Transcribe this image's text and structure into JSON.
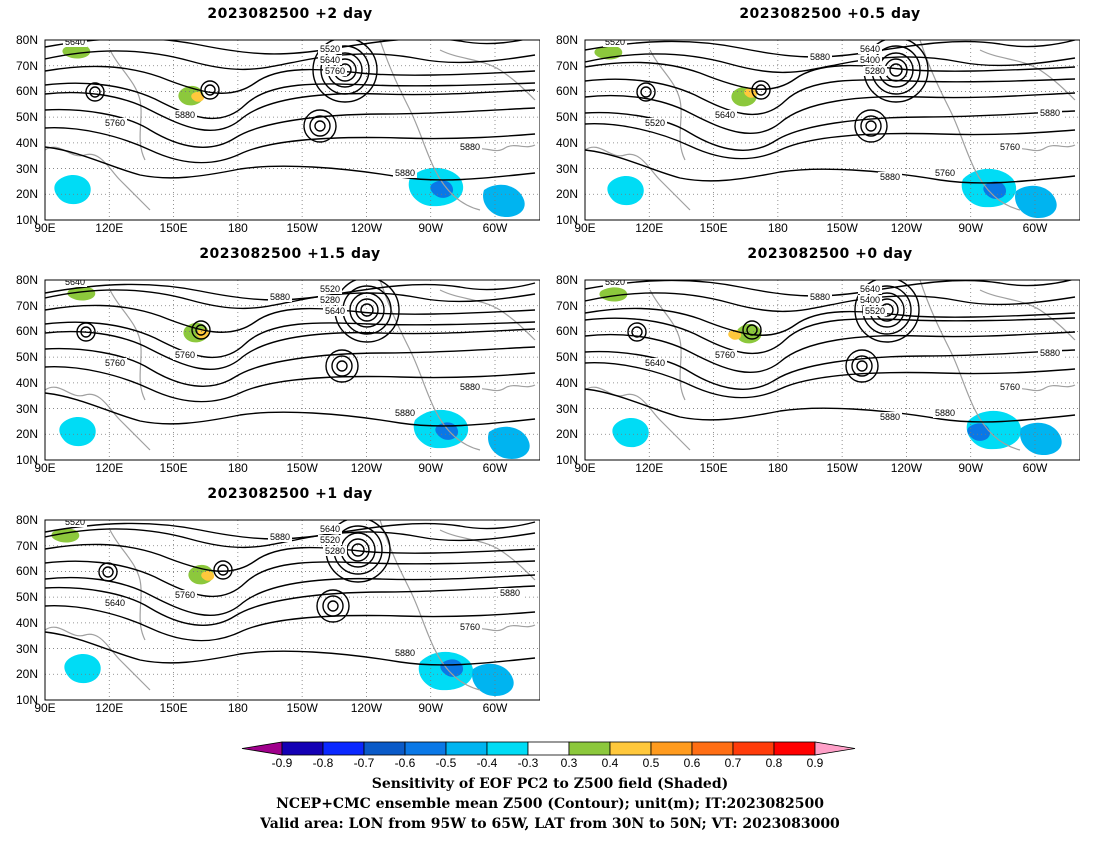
{
  "panels": [
    {
      "title": "2023082500  +2 day",
      "contour_labels": [
        "5640",
        "5520",
        "5640",
        "5760",
        "5760",
        "5880",
        "5880",
        "5880"
      ]
    },
    {
      "title": "2023082500  +0.5 day",
      "contour_labels": [
        "5520",
        "5640",
        "5400",
        "5280",
        "5520",
        "5640",
        "5760",
        "5760",
        "5880",
        "5880",
        "5880"
      ]
    },
    {
      "title": "2023082500  +1.5 day",
      "contour_labels": [
        "5640",
        "5520",
        "5280",
        "5640",
        "5760",
        "5760",
        "5880",
        "5880",
        "5880"
      ]
    },
    {
      "title": "2023082500  +0 day",
      "contour_labels": [
        "5520",
        "5640",
        "5400",
        "5520",
        "5640",
        "5760",
        "5760",
        "5880",
        "5880",
        "5880",
        "5880"
      ]
    },
    {
      "title": "2023082500  +1 day",
      "contour_labels": [
        "5520",
        "5640",
        "5520",
        "5280",
        "5640",
        "5760",
        "5760",
        "5880",
        "5880",
        "5880"
      ]
    }
  ],
  "axes": {
    "lat_labels": [
      "80N",
      "70N",
      "60N",
      "50N",
      "40N",
      "30N",
      "20N",
      "10N"
    ],
    "lon_labels": [
      "90E",
      "120E",
      "150E",
      "180",
      "150W",
      "120W",
      "90W",
      "60W"
    ]
  },
  "colorbar": {
    "ticks": [
      "-0.9",
      "-0.8",
      "-0.7",
      "-0.6",
      "-0.5",
      "-0.4",
      "-0.3",
      "0.3",
      "0.4",
      "0.5",
      "0.6",
      "0.7",
      "0.8",
      "0.9"
    ],
    "colors": [
      "#a0008c",
      "#1400b4",
      "#0a28ff",
      "#0a5ac8",
      "#0a78e6",
      "#00b4f0",
      "#00dcf5",
      "#ffffff",
      "#8cc83c",
      "#ffc83c",
      "#ff9b1e",
      "#ff6e14",
      "#ff3c0a",
      "#ff0000",
      "#ffa0c8"
    ]
  },
  "footer": {
    "line1": "Sensitivity of EOF PC2 to Z500 field (Shaded)",
    "line2": "NCEP+CMC ensemble mean Z500 (Contour); unit(m); IT:2023082500",
    "line3": "Valid area: LON from 95W to 65W, LAT from 30N to 50N; VT: 2023083000"
  }
}
